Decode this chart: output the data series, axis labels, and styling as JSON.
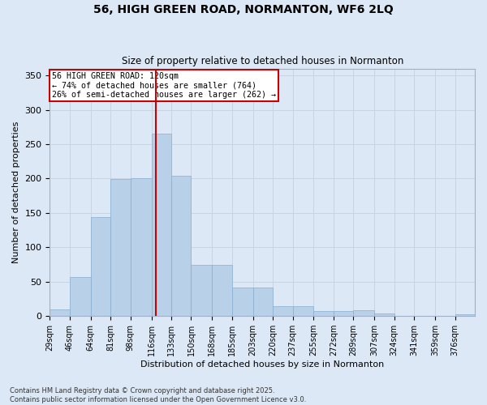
{
  "title_line1": "56, HIGH GREEN ROAD, NORMANTON, WF6 2LQ",
  "title_line2": "Size of property relative to detached houses in Normanton",
  "xlabel": "Distribution of detached houses by size in Normanton",
  "ylabel": "Number of detached properties",
  "background_color": "#dce8f5",
  "bar_color": "#b8d0e8",
  "bar_edge_color": "#88aed0",
  "vline_color": "#cc0000",
  "vline_x": 120,
  "annotation_text": "56 HIGH GREEN ROAD: 120sqm\n← 74% of detached houses are smaller (764)\n26% of semi-detached houses are larger (262) →",
  "annotation_box_color": "#ffffff",
  "annotation_box_edge": "#cc0000",
  "bin_edges": [
    29,
    46,
    64,
    81,
    98,
    116,
    133,
    150,
    168,
    185,
    203,
    220,
    237,
    255,
    272,
    289,
    307,
    324,
    341,
    359,
    376
  ],
  "bin_labels": [
    "29sqm",
    "46sqm",
    "64sqm",
    "81sqm",
    "98sqm",
    "116sqm",
    "133sqm",
    "150sqm",
    "168sqm",
    "185sqm",
    "203sqm",
    "220sqm",
    "237sqm",
    "255sqm",
    "272sqm",
    "289sqm",
    "307sqm",
    "324sqm",
    "341sqm",
    "359sqm",
    "376sqm"
  ],
  "bar_heights": [
    10,
    57,
    144,
    199,
    200,
    265,
    204,
    75,
    75,
    41,
    41,
    14,
    14,
    7,
    7,
    8,
    4,
    0,
    0,
    0,
    3
  ],
  "ylim": [
    0,
    360
  ],
  "yticks": [
    0,
    50,
    100,
    150,
    200,
    250,
    300,
    350
  ],
  "footer_line1": "Contains HM Land Registry data © Crown copyright and database right 2025.",
  "footer_line2": "Contains public sector information licensed under the Open Government Licence v3.0.",
  "grid_color": "#c8d4e4",
  "fig_width": 6.0,
  "fig_height": 5.0,
  "dpi": 100
}
